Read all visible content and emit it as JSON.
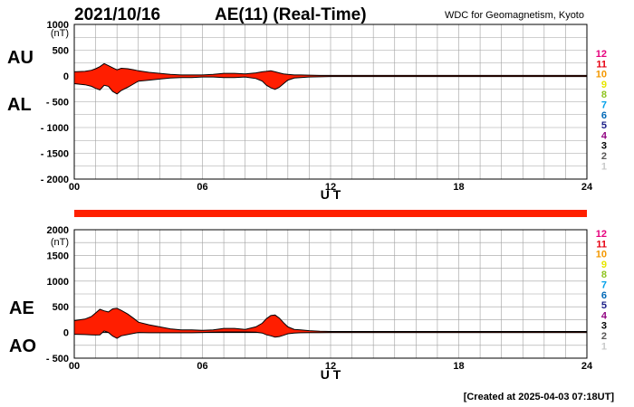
{
  "header": {
    "date": "2021/10/16",
    "title": "AE(11) (Real-Time)",
    "source": "WDC for Geomagnetism, Kyoto"
  },
  "footer": {
    "created": "[Created at 2025-04-03 07:18UT]"
  },
  "station_count_labels": [
    "12",
    "11",
    "10",
    "9",
    "8",
    "7",
    "6",
    "5",
    "4",
    "3",
    "2",
    "1"
  ],
  "station_count_colors": [
    "#e6007e",
    "#e60012",
    "#f39800",
    "#e6e600",
    "#8fc31f",
    "#00a0e9",
    "#0068b7",
    "#1d2088",
    "#920783",
    "#000000",
    "#595757",
    "#c9caca"
  ],
  "colors": {
    "fill": "#ff1e00",
    "grid": "#999999",
    "bar": "#ff2000"
  },
  "chart_data": [
    {
      "type": "area",
      "panel": "AU/AL",
      "series_labels": [
        "AU",
        "AL"
      ],
      "ylabel": "(nT)",
      "xlabel": "U T",
      "ylim": [
        -2000,
        1000
      ],
      "yticks": [
        1000,
        500,
        0,
        -500,
        -1000,
        -1500,
        -2000
      ],
      "ytick_labels": [
        "1000",
        "500",
        "0",
        "- 500",
        "- 1000",
        "- 1500",
        "- 2000"
      ],
      "xlim": [
        0,
        24
      ],
      "xtick_labels": [
        "00",
        "06",
        "12",
        "18",
        "24"
      ],
      "x": [
        0,
        0.5,
        0.8,
        1.0,
        1.2,
        1.4,
        1.6,
        1.8,
        2.0,
        2.2,
        2.5,
        2.8,
        3.0,
        3.5,
        4.0,
        4.5,
        5.0,
        5.5,
        6.0,
        6.5,
        7.0,
        7.5,
        8.0,
        8.5,
        8.8,
        9.0,
        9.2,
        9.4,
        9.6,
        9.8,
        10.0,
        10.3,
        10.6,
        11.0,
        11.5,
        12.0,
        13,
        14,
        15,
        16,
        17,
        18,
        19,
        20,
        21,
        22,
        23,
        24
      ],
      "series": [
        {
          "name": "AU",
          "values": [
            80,
            90,
            110,
            140,
            180,
            240,
            200,
            160,
            120,
            150,
            140,
            120,
            100,
            70,
            50,
            30,
            20,
            20,
            20,
            30,
            50,
            50,
            40,
            60,
            80,
            90,
            100,
            80,
            60,
            40,
            30,
            20,
            20,
            15,
            10,
            10,
            10,
            10,
            10,
            10,
            10,
            10,
            10,
            10,
            10,
            10,
            10,
            10
          ]
        },
        {
          "name": "AL",
          "values": [
            -150,
            -170,
            -200,
            -240,
            -270,
            -180,
            -200,
            -300,
            -350,
            -280,
            -220,
            -150,
            -100,
            -80,
            -60,
            -40,
            -30,
            -30,
            -20,
            -20,
            -30,
            -30,
            -20,
            -50,
            -100,
            -180,
            -230,
            -260,
            -220,
            -150,
            -80,
            -40,
            -30,
            -20,
            -15,
            -10,
            -10,
            -10,
            -10,
            -10,
            -10,
            -10,
            -10,
            -10,
            -10,
            -10,
            -10,
            -10
          ]
        }
      ]
    },
    {
      "type": "area",
      "panel": "AE/AO",
      "series_labels": [
        "AE",
        "AO"
      ],
      "ylabel": "(nT)",
      "xlabel": "U T",
      "ylim": [
        -500,
        2000
      ],
      "yticks": [
        2000,
        1500,
        1000,
        500,
        0,
        -500
      ],
      "ytick_labels": [
        "2000",
        "1500",
        "1000",
        "500",
        "0",
        "- 500"
      ],
      "xlim": [
        0,
        24
      ],
      "xtick_labels": [
        "00",
        "06",
        "12",
        "18",
        "24"
      ],
      "x": [
        0,
        0.5,
        0.8,
        1.0,
        1.2,
        1.4,
        1.6,
        1.8,
        2.0,
        2.2,
        2.5,
        2.8,
        3.0,
        3.5,
        4.0,
        4.5,
        5.0,
        5.5,
        6.0,
        6.5,
        7.0,
        7.5,
        8.0,
        8.5,
        8.8,
        9.0,
        9.2,
        9.4,
        9.6,
        9.8,
        10.0,
        10.3,
        10.6,
        11.0,
        11.5,
        12.0,
        13,
        14,
        15,
        16,
        17,
        18,
        19,
        20,
        21,
        22,
        23,
        24
      ],
      "series": [
        {
          "name": "AE",
          "values": [
            230,
            260,
            310,
            380,
            450,
            420,
            400,
            460,
            470,
            430,
            360,
            270,
            200,
            150,
            110,
            70,
            50,
            50,
            40,
            50,
            80,
            80,
            60,
            110,
            180,
            270,
            330,
            340,
            280,
            190,
            110,
            60,
            50,
            35,
            25,
            20,
            20,
            20,
            20,
            20,
            20,
            20,
            20,
            20,
            20,
            20,
            20,
            20
          ]
        },
        {
          "name": "AO",
          "values": [
            -35,
            -40,
            -45,
            -50,
            -45,
            30,
            0,
            -70,
            -115,
            -65,
            -40,
            -15,
            0,
            -5,
            -5,
            -5,
            -5,
            -5,
            0,
            5,
            10,
            10,
            10,
            5,
            -10,
            -45,
            -65,
            -90,
            -80,
            -55,
            -25,
            -10,
            -5,
            -2,
            -2,
            0,
            0,
            0,
            0,
            0,
            0,
            0,
            0,
            0,
            0,
            0,
            0,
            0
          ]
        }
      ]
    }
  ]
}
